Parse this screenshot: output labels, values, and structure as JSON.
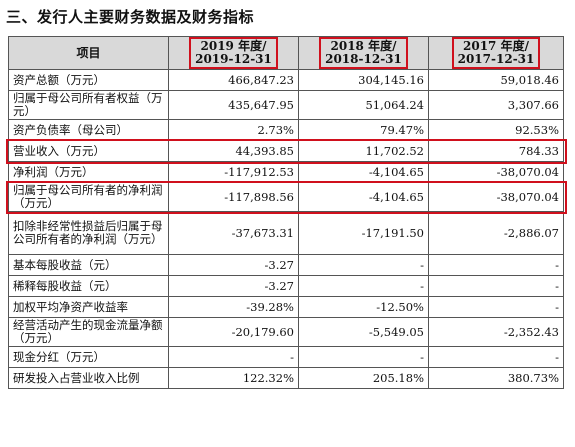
{
  "section_title": "三、发行人主要财务数据及财务指标",
  "table": {
    "headers": {
      "item": "项目",
      "col1_year": "2019 年度/",
      "col1_date": "2019-12-31",
      "col2_year": "2018 年度/",
      "col2_date": "2018-12-31",
      "col3_year": "2017 年度/",
      "col3_date": "2017-12-31"
    },
    "rows": [
      {
        "label": "资产总额（万元）",
        "v2019": "466,847.23",
        "v2018": "304,145.16",
        "v2017": "59,018.46"
      },
      {
        "label": "归属于母公司所有者权益（万元）",
        "v2019": "435,647.95",
        "v2018": "51,064.24",
        "v2017": "3,307.66"
      },
      {
        "label": "资产负债率（母公司）",
        "v2019": "2.73%",
        "v2018": "79.47%",
        "v2017": "92.53%"
      },
      {
        "label": "营业收入（万元）",
        "v2019": "44,393.85",
        "v2018": "11,702.52",
        "v2017": "784.33"
      },
      {
        "label": "净利润（万元）",
        "v2019": "-117,912.53",
        "v2018": "-4,104.65",
        "v2017": "-38,070.04"
      },
      {
        "label": "归属于母公司所有者的净利润（万元）",
        "v2019": "-117,898.56",
        "v2018": "-4,104.65",
        "v2017": "-38,070.04"
      },
      {
        "label": "扣除非经常性损益后归属于母公司所有者的净利润（万元）",
        "v2019": "-37,673.31",
        "v2018": "-17,191.50",
        "v2017": "-2,886.07"
      },
      {
        "label": "基本每股收益（元）",
        "v2019": "-3.27",
        "v2018": "-",
        "v2017": "-"
      },
      {
        "label": "稀释每股收益（元）",
        "v2019": "-3.27",
        "v2018": "-",
        "v2017": "-"
      },
      {
        "label": "加权平均净资产收益率",
        "v2019": "-39.28%",
        "v2018": "-12.50%",
        "v2017": "-"
      },
      {
        "label": "经营活动产生的现金流量净额（万元）",
        "v2019": "-20,179.60",
        "v2018": "-5,549.05",
        "v2017": "-2,352.43"
      },
      {
        "label": "现金分红（万元）",
        "v2019": "-",
        "v2018": "-",
        "v2017": "-"
      },
      {
        "label": "研发投入占营业收入比例",
        "v2019": "122.32%",
        "v2018": "205.18%",
        "v2017": "380.73%"
      }
    ]
  },
  "highlight_color": "#d0101d"
}
